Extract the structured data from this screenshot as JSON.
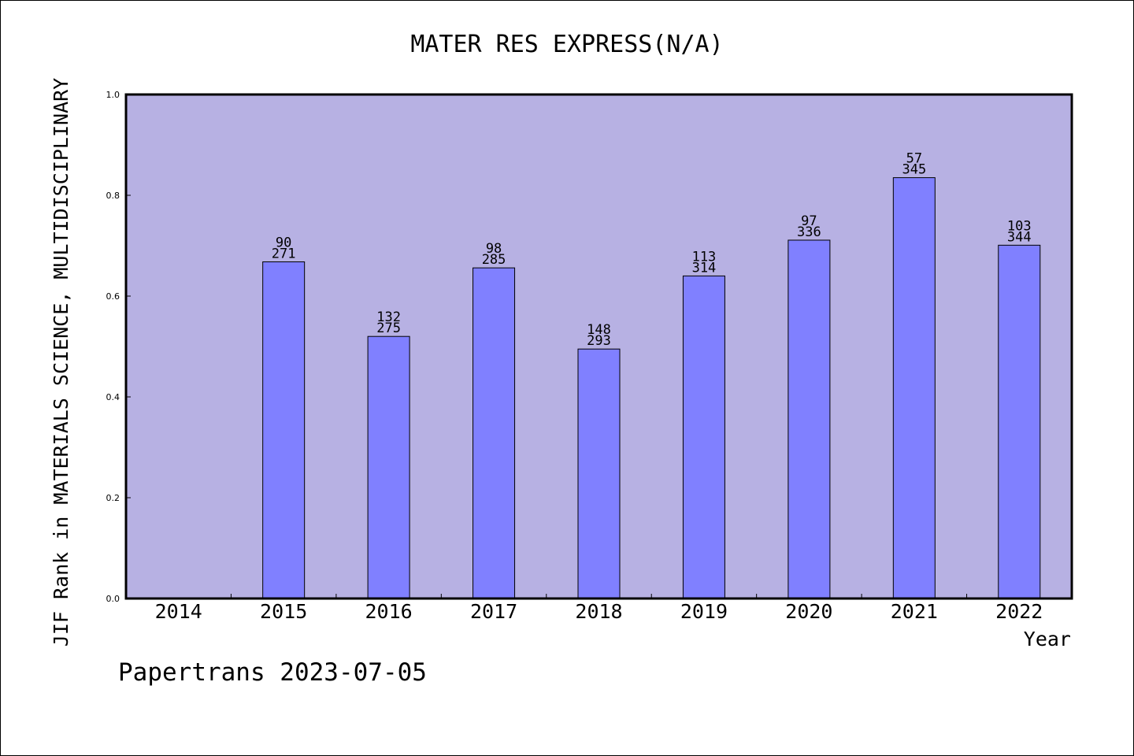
{
  "chart_data": {
    "type": "bar",
    "title": "MATER RES EXPRESS(N/A)",
    "xlabel": "Year",
    "ylabel": "JIF Rank in MATERIALS SCIENCE, MULTIDISCIPLINARY",
    "ylim": [
      0,
      1.0
    ],
    "yticks": [
      "0.0",
      "0.2",
      "0.4",
      "0.6",
      "0.8",
      "1.0"
    ],
    "categories": [
      "2014",
      "2015",
      "2016",
      "2017",
      "2018",
      "2019",
      "2020",
      "2021",
      "2022"
    ],
    "values": [
      null,
      0.668,
      0.52,
      0.656,
      0.495,
      0.64,
      0.711,
      0.835,
      0.701
    ],
    "labels": [
      null,
      {
        "rank": "90",
        "total": "271"
      },
      {
        "rank": "132",
        "total": "275"
      },
      {
        "rank": "98",
        "total": "285"
      },
      {
        "rank": "148",
        "total": "293"
      },
      {
        "rank": "113",
        "total": "314"
      },
      {
        "rank": "97",
        "total": "336"
      },
      {
        "rank": "57",
        "total": "345"
      },
      {
        "rank": "103",
        "total": "344"
      }
    ],
    "grid": false,
    "colors": {
      "plot_bg": "#b7b1e3",
      "bar_fill": "#8080ff",
      "axis": "#000000"
    }
  },
  "footer": {
    "text": "Papertrans 2023-07-05"
  }
}
